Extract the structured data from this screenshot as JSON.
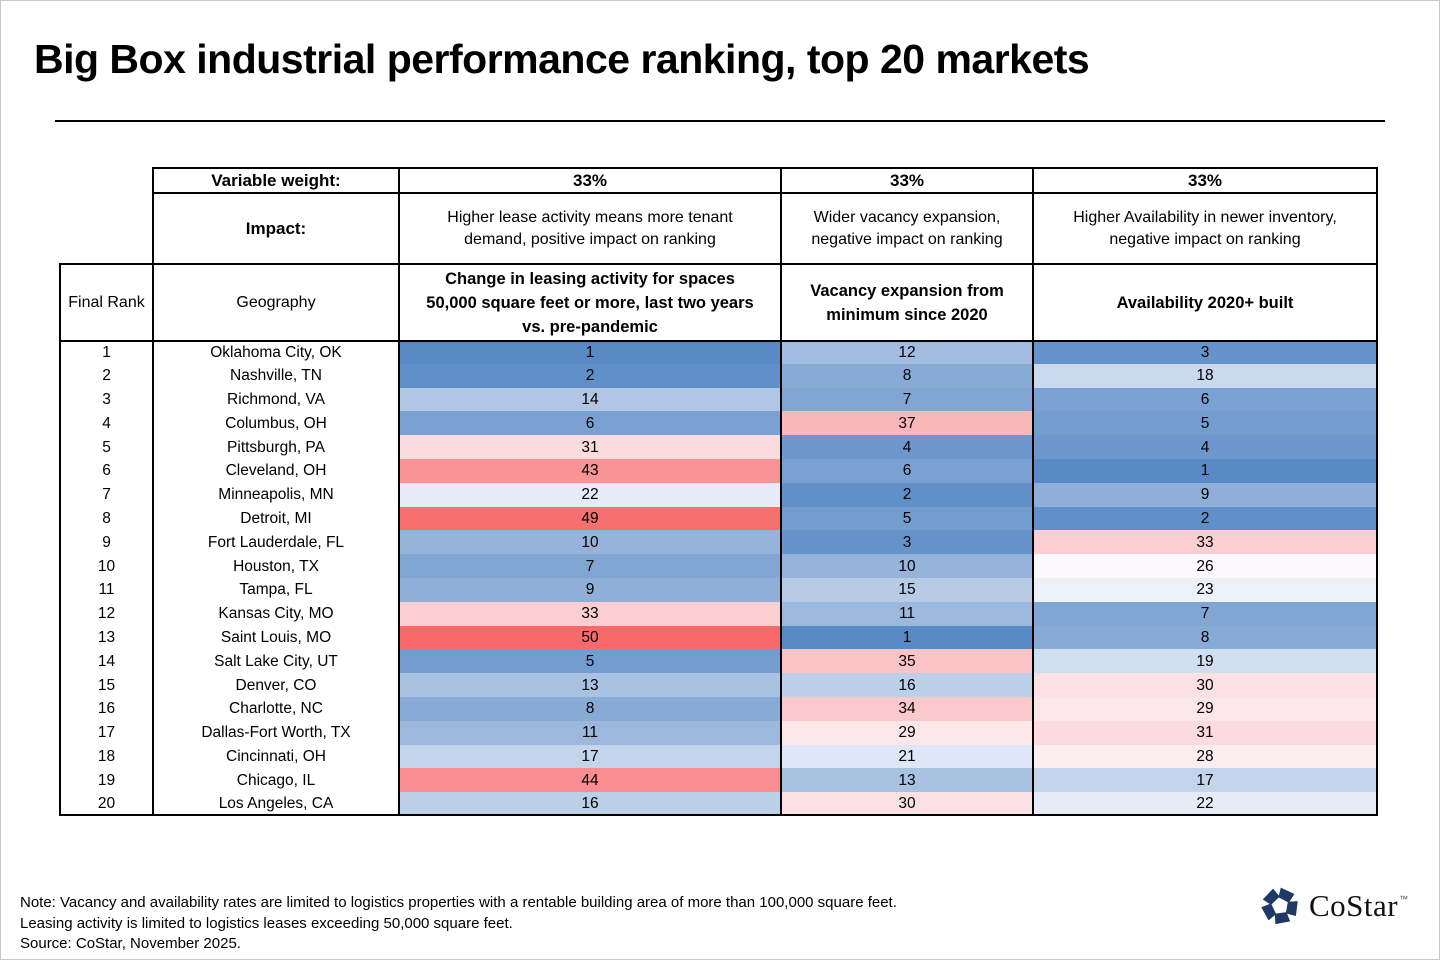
{
  "title": "Big Box industrial performance ranking, top 20 markets",
  "table": {
    "header": {
      "variable_weight_label": "Variable weight:",
      "weights": [
        "33%",
        "33%",
        "33%"
      ],
      "impact_label": "Impact:",
      "impacts": [
        "Higher lease activity means more tenant demand, positive impact on ranking",
        "Wider vacancy expansion, negative impact on ranking",
        "Higher Availability in newer inventory, negative impact on ranking"
      ],
      "final_rank_label": "Final Rank",
      "geography_label": "Geography",
      "metrics": [
        "Change in leasing activity for spaces 50,000 square feet or more, last two years vs. pre-pandemic",
        "Vacancy expansion from minimum since 2020",
        "Availability 2020+ built"
      ]
    }
  },
  "chart_data": {
    "type": "heatmap",
    "title": "Big Box industrial performance ranking, top 20 markets",
    "columns": [
      "Final Rank",
      "Geography",
      "Change in leasing activity rank",
      "Vacancy expansion rank",
      "Availability 2020+ built rank"
    ],
    "heat_scale": {
      "min_color": "#5A8AC6",
      "mid_color": "#FCFCFF",
      "max_color": "#F8696B",
      "domain": [
        1,
        25.5,
        50
      ]
    },
    "rows": [
      {
        "rank": 1,
        "geography": "Oklahoma City, OK",
        "leasing": 1,
        "vacancy": 12,
        "availability": 3
      },
      {
        "rank": 2,
        "geography": "Nashville, TN",
        "leasing": 2,
        "vacancy": 8,
        "availability": 18
      },
      {
        "rank": 3,
        "geography": "Richmond, VA",
        "leasing": 14,
        "vacancy": 7,
        "availability": 6
      },
      {
        "rank": 4,
        "geography": "Columbus, OH",
        "leasing": 6,
        "vacancy": 37,
        "availability": 5
      },
      {
        "rank": 5,
        "geography": "Pittsburgh, PA",
        "leasing": 31,
        "vacancy": 4,
        "availability": 4
      },
      {
        "rank": 6,
        "geography": "Cleveland, OH",
        "leasing": 43,
        "vacancy": 6,
        "availability": 1
      },
      {
        "rank": 7,
        "geography": "Minneapolis, MN",
        "leasing": 22,
        "vacancy": 2,
        "availability": 9
      },
      {
        "rank": 8,
        "geography": "Detroit, MI",
        "leasing": 49,
        "vacancy": 5,
        "availability": 2
      },
      {
        "rank": 9,
        "geography": "Fort Lauderdale, FL",
        "leasing": 10,
        "vacancy": 3,
        "availability": 33
      },
      {
        "rank": 10,
        "geography": "Houston, TX",
        "leasing": 7,
        "vacancy": 10,
        "availability": 26
      },
      {
        "rank": 11,
        "geography": "Tampa, FL",
        "leasing": 9,
        "vacancy": 15,
        "availability": 23
      },
      {
        "rank": 12,
        "geography": "Kansas City, MO",
        "leasing": 33,
        "vacancy": 11,
        "availability": 7
      },
      {
        "rank": 13,
        "geography": "Saint Louis, MO",
        "leasing": 50,
        "vacancy": 1,
        "availability": 8
      },
      {
        "rank": 14,
        "geography": "Salt Lake City, UT",
        "leasing": 5,
        "vacancy": 35,
        "availability": 19
      },
      {
        "rank": 15,
        "geography": "Denver, CO",
        "leasing": 13,
        "vacancy": 16,
        "availability": 30
      },
      {
        "rank": 16,
        "geography": "Charlotte, NC",
        "leasing": 8,
        "vacancy": 34,
        "availability": 29
      },
      {
        "rank": 17,
        "geography": "Dallas-Fort Worth, TX",
        "leasing": 11,
        "vacancy": 29,
        "availability": 31
      },
      {
        "rank": 18,
        "geography": "Cincinnati, OH",
        "leasing": 17,
        "vacancy": 21,
        "availability": 28
      },
      {
        "rank": 19,
        "geography": "Chicago, IL",
        "leasing": 44,
        "vacancy": 13,
        "availability": 17
      },
      {
        "rank": 20,
        "geography": "Los Angeles, CA",
        "leasing": 16,
        "vacancy": 30,
        "availability": 22
      }
    ]
  },
  "notes": [
    "Note: Vacancy and availability rates are limited to logistics properties with a rentable building area of more than 100,000 square feet.",
    "Leasing activity is limited to logistics leases exceeding 50,000 square feet.",
    "Source: CoStar, November 2025."
  ],
  "brand": {
    "name": "CoStar",
    "tm": "™",
    "logo_color": "#1F3864"
  }
}
